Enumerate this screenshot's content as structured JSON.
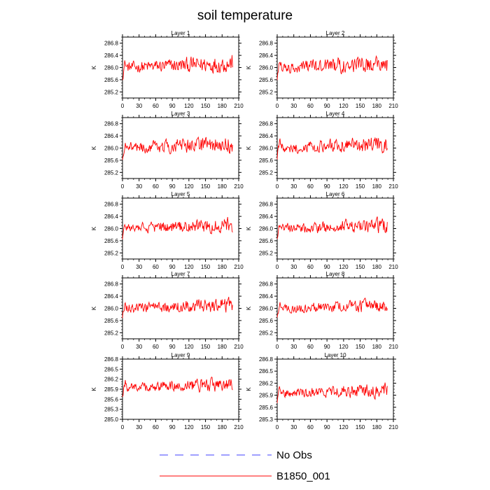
{
  "title": "soil temperature",
  "legend": {
    "entries": [
      {
        "label": "No Obs",
        "color": "#3f3fff",
        "dash": true
      },
      {
        "label": "B1850_001",
        "color": "#ff0000",
        "dash": false
      }
    ]
  },
  "chart_data": [
    {
      "type": "line",
      "title": "Layer 1",
      "ylabel": "K",
      "xlim": [
        0,
        210
      ],
      "ylim": [
        285.0,
        287.0
      ],
      "xticks": [
        0,
        30,
        60,
        90,
        120,
        150,
        180,
        210
      ],
      "yticks": [
        285.2,
        285.6,
        286.0,
        286.4,
        286.8
      ],
      "series": [
        {
          "color": "#ff0000",
          "amplitude": 0.38,
          "x": [
            0,
            1,
            2,
            3,
            4,
            5,
            6,
            7,
            8,
            9,
            10,
            11,
            12,
            13,
            14,
            15,
            16,
            17,
            18,
            19,
            20,
            21,
            22,
            23,
            24,
            25,
            26,
            27,
            28,
            29,
            30,
            31,
            32,
            33,
            34,
            35,
            36,
            37,
            38,
            39,
            40,
            41,
            42,
            43,
            44,
            45,
            46,
            47,
            48,
            49,
            50,
            51,
            52,
            53,
            54,
            55,
            56,
            57,
            58,
            59,
            60,
            61,
            62,
            63,
            64,
            65,
            66,
            67,
            68,
            69,
            70,
            71,
            72,
            73,
            74,
            75,
            76,
            77,
            78,
            79,
            80,
            81,
            82,
            83,
            84,
            85,
            86,
            87,
            88,
            89,
            90,
            91,
            92,
            93,
            94,
            95,
            96,
            97,
            98,
            99,
            100,
            101,
            102,
            103,
            104,
            105,
            106,
            107,
            108,
            109,
            110,
            111,
            112,
            113,
            114,
            115,
            116,
            117,
            118,
            119,
            120,
            121,
            122,
            123,
            124,
            125,
            126,
            127,
            128,
            129,
            130,
            131,
            132,
            133,
            134,
            135,
            136,
            137,
            138,
            139,
            140,
            141,
            142,
            143,
            144,
            145,
            146,
            147,
            148,
            149,
            150,
            151,
            152,
            153,
            154,
            155,
            156,
            157,
            158,
            159,
            160,
            161,
            162,
            163,
            164,
            165,
            166,
            167,
            168,
            169,
            170,
            171,
            172,
            173,
            174,
            175,
            176,
            177,
            178,
            179,
            180,
            181,
            182,
            183,
            184,
            185,
            186,
            187,
            188,
            189,
            190,
            191,
            192,
            193,
            194,
            195,
            196,
            197,
            198,
            199
          ],
          "base": 286.0
        }
      ]
    },
    {
      "type": "line",
      "title": "Layer 2",
      "ylabel": "K",
      "xlim": [
        0,
        210
      ],
      "ylim": [
        285.0,
        287.0
      ],
      "xticks": [
        0,
        30,
        60,
        90,
        120,
        150,
        180,
        210
      ],
      "yticks": [
        285.2,
        285.6,
        286.0,
        286.4,
        286.8
      ],
      "series": [
        {
          "color": "#ff0000",
          "amplitude": 0.38,
          "base": 286.0
        }
      ]
    },
    {
      "type": "line",
      "title": "Layer 3",
      "ylabel": "K",
      "xlim": [
        0,
        210
      ],
      "ylim": [
        285.0,
        287.0
      ],
      "xticks": [
        0,
        30,
        60,
        90,
        120,
        150,
        180,
        210
      ],
      "yticks": [
        285.2,
        285.6,
        286.0,
        286.4,
        286.8
      ],
      "series": [
        {
          "color": "#ff0000",
          "amplitude": 0.36,
          "base": 286.0
        }
      ]
    },
    {
      "type": "line",
      "title": "Layer 4",
      "ylabel": "K",
      "xlim": [
        0,
        210
      ],
      "ylim": [
        285.0,
        287.0
      ],
      "xticks": [
        0,
        30,
        60,
        90,
        120,
        150,
        180,
        210
      ],
      "yticks": [
        285.2,
        285.6,
        286.0,
        286.4,
        286.8
      ],
      "series": [
        {
          "color": "#ff0000",
          "amplitude": 0.35,
          "base": 286.0
        }
      ]
    },
    {
      "type": "line",
      "title": "Layer 5",
      "ylabel": "K",
      "xlim": [
        0,
        210
      ],
      "ylim": [
        285.0,
        287.0
      ],
      "xticks": [
        0,
        30,
        60,
        90,
        120,
        150,
        180,
        210
      ],
      "yticks": [
        285.2,
        285.6,
        286.0,
        286.4,
        286.8
      ],
      "series": [
        {
          "color": "#ff0000",
          "amplitude": 0.33,
          "base": 286.0
        }
      ]
    },
    {
      "type": "line",
      "title": "Layer 6",
      "ylabel": "K",
      "xlim": [
        0,
        210
      ],
      "ylim": [
        285.0,
        287.0
      ],
      "xticks": [
        0,
        30,
        60,
        90,
        120,
        150,
        180,
        210
      ],
      "yticks": [
        285.2,
        285.6,
        286.0,
        286.4,
        286.8
      ],
      "series": [
        {
          "color": "#ff0000",
          "amplitude": 0.32,
          "base": 286.0
        }
      ]
    },
    {
      "type": "line",
      "title": "Layer 7",
      "ylabel": "K",
      "xlim": [
        0,
        210
      ],
      "ylim": [
        285.0,
        287.0
      ],
      "xticks": [
        0,
        30,
        60,
        90,
        120,
        150,
        180,
        210
      ],
      "yticks": [
        285.2,
        285.6,
        286.0,
        286.4,
        286.8
      ],
      "series": [
        {
          "color": "#ff0000",
          "amplitude": 0.3,
          "base": 286.0
        }
      ]
    },
    {
      "type": "line",
      "title": "Layer 8",
      "ylabel": "K",
      "xlim": [
        0,
        210
      ],
      "ylim": [
        285.0,
        287.0
      ],
      "xticks": [
        0,
        30,
        60,
        90,
        120,
        150,
        180,
        210
      ],
      "yticks": [
        285.2,
        285.6,
        286.0,
        286.4,
        286.8
      ],
      "series": [
        {
          "color": "#ff0000",
          "amplitude": 0.28,
          "base": 286.0
        }
      ]
    },
    {
      "type": "line",
      "title": "Layer 9",
      "ylabel": "K",
      "xlim": [
        0,
        210
      ],
      "ylim": [
        285.0,
        286.8
      ],
      "xticks": [
        0,
        30,
        60,
        90,
        120,
        150,
        180,
        210
      ],
      "yticks": [
        285.0,
        285.3,
        285.6,
        285.9,
        286.2,
        286.5,
        286.8
      ],
      "series": [
        {
          "color": "#ff0000",
          "amplitude": 0.26,
          "base": 285.95
        }
      ]
    },
    {
      "type": "line",
      "title": "Layer 10",
      "ylabel": "K",
      "xlim": [
        0,
        210
      ],
      "ylim": [
        285.3,
        286.8
      ],
      "xticks": [
        0,
        30,
        60,
        90,
        120,
        150,
        180,
        210
      ],
      "yticks": [
        285.3,
        285.6,
        285.9,
        286.2,
        286.5,
        286.8
      ],
      "series": [
        {
          "color": "#ff0000",
          "amplitude": 0.23,
          "base": 285.95
        }
      ]
    }
  ]
}
